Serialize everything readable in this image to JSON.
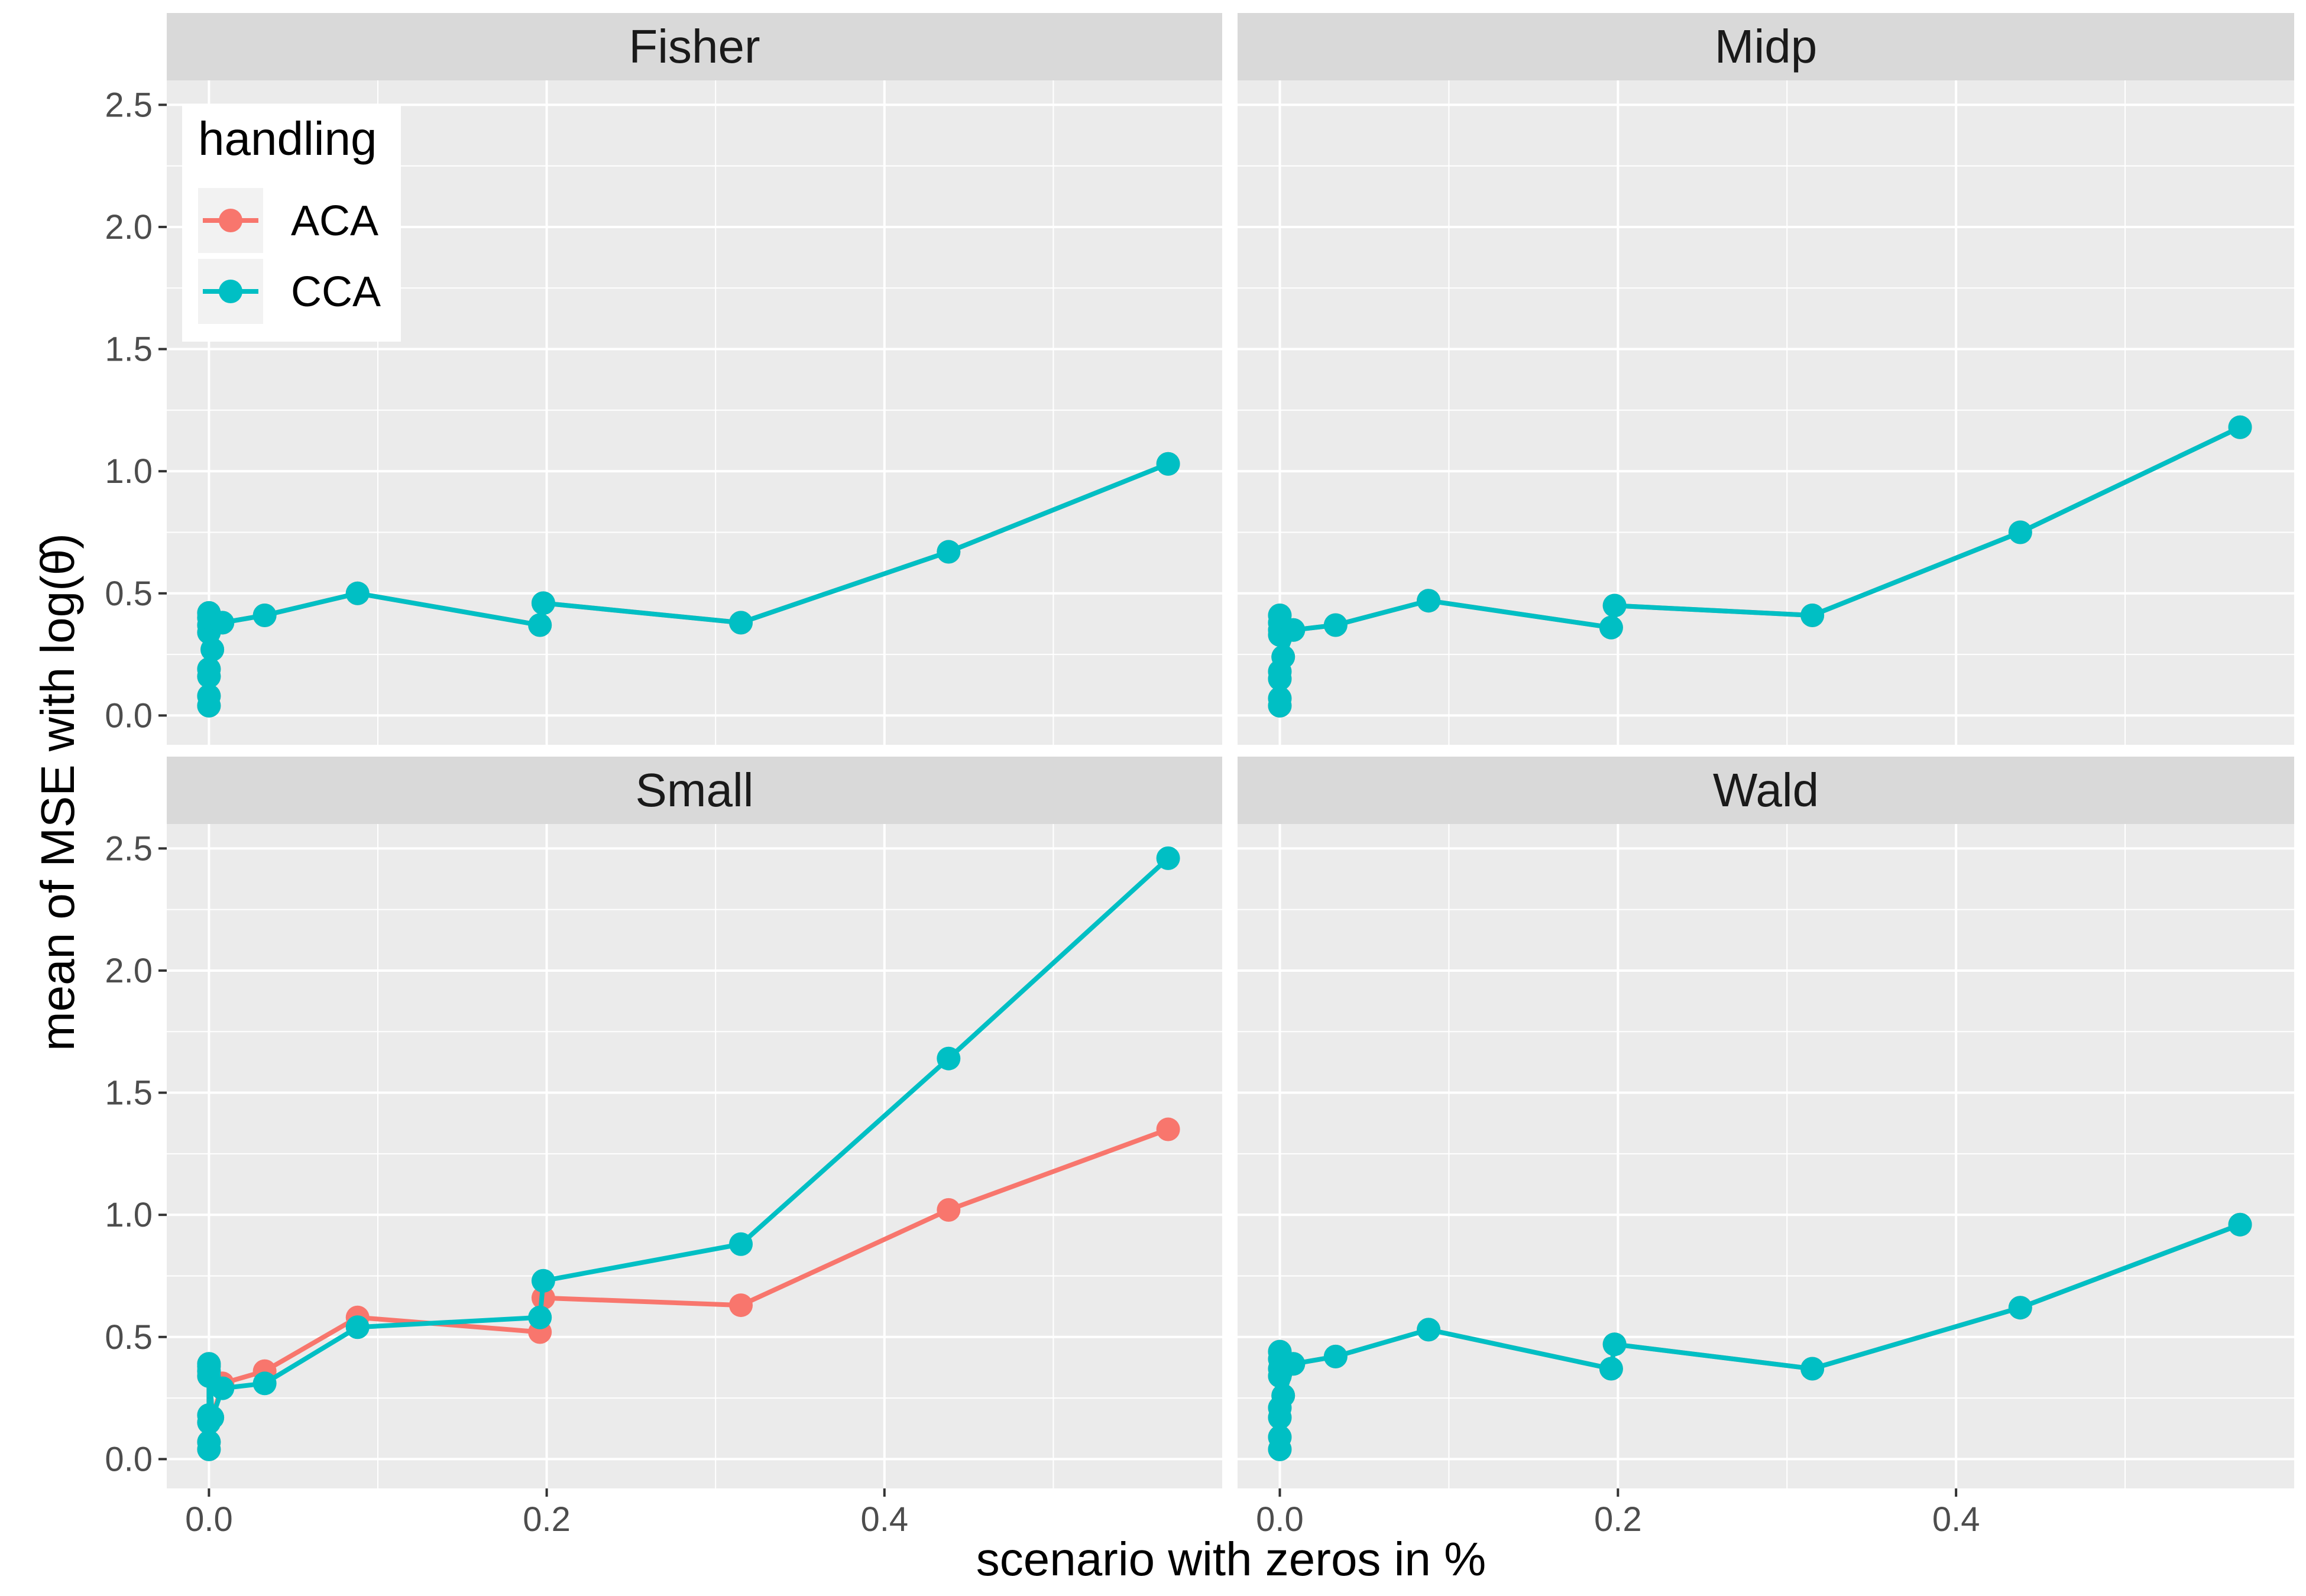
{
  "chart_data": {
    "type": "line",
    "xlabel": "scenario with zeros in %",
    "ylabel": "mean of MSE with log(θ̂)",
    "xlim": [
      -0.025,
      0.6
    ],
    "ylim": [
      -0.12,
      2.6
    ],
    "x_ticks": [
      0.0,
      0.2,
      0.4
    ],
    "x_tick_labels": [
      "0.0",
      "0.2",
      "0.4"
    ],
    "y_ticks": [
      0.0,
      0.5,
      1.0,
      1.5,
      2.0,
      2.5
    ],
    "y_tick_labels": [
      "0.0",
      "0.5",
      "1.0",
      "1.5",
      "2.0",
      "2.5"
    ],
    "grid": true,
    "legend": {
      "title": "handling",
      "position": "inside top-left",
      "entries": [
        {
          "label": "ACA",
          "color": "#F8766D"
        },
        {
          "label": "CCA",
          "color": "#00BFC4"
        }
      ]
    },
    "colors": {
      "ACA": "#F8766D",
      "CCA": "#00BFC4",
      "panel_bg": "#EBEBEB",
      "strip_bg": "#D9D9D9"
    },
    "panels": [
      {
        "title": "Fisher",
        "series": [
          {
            "name": "ACA",
            "x": [
              0,
              0,
              0,
              0,
              0,
              0,
              0,
              0,
              0.002,
              0.008,
              0.033,
              0.088,
              0.196,
              0.198,
              0.315,
              0.438,
              0.568
            ],
            "y": [
              0.04,
              0.08,
              0.16,
              0.19,
              0.34,
              0.37,
              0.4,
              0.42,
              0.27,
              0.38,
              0.41,
              0.5,
              0.37,
              0.46,
              0.38,
              0.67,
              1.03
            ]
          },
          {
            "name": "CCA",
            "x": [
              0,
              0,
              0,
              0,
              0,
              0,
              0,
              0,
              0.002,
              0.008,
              0.033,
              0.088,
              0.196,
              0.198,
              0.315,
              0.438,
              0.568
            ],
            "y": [
              0.04,
              0.08,
              0.16,
              0.19,
              0.34,
              0.37,
              0.4,
              0.42,
              0.27,
              0.38,
              0.41,
              0.5,
              0.37,
              0.46,
              0.38,
              0.67,
              1.03
            ]
          }
        ]
      },
      {
        "title": "Midp",
        "series": [
          {
            "name": "ACA",
            "x": [
              0,
              0,
              0,
              0,
              0,
              0,
              0,
              0,
              0.002,
              0.008,
              0.033,
              0.088,
              0.196,
              0.198,
              0.315,
              0.438,
              0.568
            ],
            "y": [
              0.04,
              0.07,
              0.15,
              0.18,
              0.33,
              0.35,
              0.38,
              0.41,
              0.24,
              0.35,
              0.37,
              0.47,
              0.36,
              0.45,
              0.41,
              0.75,
              1.18
            ]
          },
          {
            "name": "CCA",
            "x": [
              0,
              0,
              0,
              0,
              0,
              0,
              0,
              0,
              0.002,
              0.008,
              0.033,
              0.088,
              0.196,
              0.198,
              0.315,
              0.438,
              0.568
            ],
            "y": [
              0.04,
              0.07,
              0.15,
              0.18,
              0.33,
              0.35,
              0.38,
              0.41,
              0.24,
              0.35,
              0.37,
              0.47,
              0.36,
              0.45,
              0.41,
              0.75,
              1.18
            ]
          }
        ]
      },
      {
        "title": "Small",
        "series": [
          {
            "name": "ACA",
            "x": [
              0,
              0,
              0,
              0,
              0,
              0,
              0,
              0,
              0.002,
              0.008,
              0.033,
              0.088,
              0.196,
              0.198,
              0.315,
              0.438,
              0.568
            ],
            "y": [
              0.04,
              0.07,
              0.15,
              0.18,
              0.34,
              0.36,
              0.38,
              0.39,
              0.17,
              0.31,
              0.36,
              0.58,
              0.52,
              0.66,
              0.63,
              1.02,
              1.35
            ]
          },
          {
            "name": "CCA",
            "x": [
              0,
              0,
              0,
              0,
              0,
              0,
              0,
              0,
              0.002,
              0.008,
              0.033,
              0.088,
              0.196,
              0.198,
              0.315,
              0.438,
              0.568
            ],
            "y": [
              0.04,
              0.07,
              0.15,
              0.18,
              0.34,
              0.36,
              0.38,
              0.39,
              0.17,
              0.29,
              0.31,
              0.54,
              0.58,
              0.73,
              0.88,
              1.64,
              2.46
            ]
          }
        ]
      },
      {
        "title": "Wald",
        "series": [
          {
            "name": "ACA",
            "x": [
              0,
              0,
              0,
              0,
              0,
              0,
              0,
              0,
              0.002,
              0.008,
              0.033,
              0.088,
              0.196,
              0.198,
              0.315,
              0.438,
              0.568
            ],
            "y": [
              0.04,
              0.09,
              0.17,
              0.21,
              0.34,
              0.37,
              0.41,
              0.44,
              0.26,
              0.39,
              0.42,
              0.53,
              0.37,
              0.47,
              0.37,
              0.62,
              0.96
            ]
          },
          {
            "name": "CCA",
            "x": [
              0,
              0,
              0,
              0,
              0,
              0,
              0,
              0,
              0.002,
              0.008,
              0.033,
              0.088,
              0.196,
              0.198,
              0.315,
              0.438,
              0.568
            ],
            "y": [
              0.04,
              0.09,
              0.17,
              0.21,
              0.34,
              0.37,
              0.41,
              0.44,
              0.26,
              0.39,
              0.42,
              0.53,
              0.37,
              0.47,
              0.37,
              0.62,
              0.96
            ]
          }
        ]
      }
    ]
  }
}
